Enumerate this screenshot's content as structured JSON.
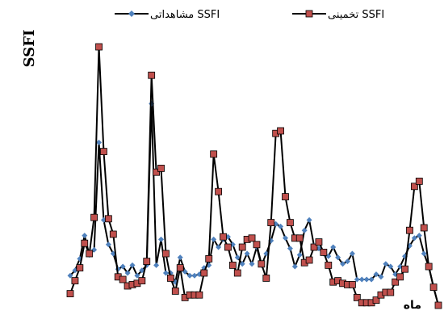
{
  "chart_data": {
    "type": "line",
    "title": "",
    "xlabel": "ماه",
    "ylabel": "SSFI",
    "ylim": [
      0,
      1
    ],
    "grid": false,
    "legend_position": "top",
    "x": [
      1,
      2,
      3,
      4,
      5,
      6,
      7,
      8,
      9,
      10,
      11,
      12,
      13,
      14,
      15,
      16,
      17,
      18,
      19,
      20,
      21,
      22,
      23,
      24,
      25,
      26,
      27,
      28,
      29,
      30,
      31,
      32,
      33,
      34,
      35,
      36,
      37,
      38,
      39,
      40,
      41,
      42,
      43,
      44,
      45,
      46,
      47,
      48,
      49,
      50,
      51,
      52,
      53,
      54,
      55,
      56,
      57,
      58,
      59,
      60,
      61,
      62,
      63,
      64,
      65,
      66,
      67,
      68,
      69,
      70,
      71,
      72,
      73,
      74,
      75,
      76,
      77,
      78
    ],
    "series": [
      {
        "name": "تخمینی SSFI",
        "color": "#c0504d",
        "marker": "square",
        "values": [
          0.045,
          0.095,
          0.145,
          0.24,
          0.2,
          0.34,
          1.0,
          0.595,
          0.335,
          0.275,
          0.11,
          0.1,
          0.075,
          0.08,
          0.085,
          0.095,
          0.17,
          0.89,
          0.515,
          0.53,
          0.2,
          0.105,
          0.055,
          0.145,
          0.03,
          0.04,
          0.04,
          0.04,
          0.125,
          0.18,
          0.585,
          0.44,
          0.265,
          0.225,
          0.155,
          0.125,
          0.225,
          0.255,
          0.26,
          0.235,
          0.16,
          0.105,
          0.32,
          0.665,
          0.675,
          0.42,
          0.32,
          0.26,
          0.26,
          0.165,
          0.175,
          0.225,
          0.245,
          0.205,
          0.155,
          0.09,
          0.095,
          0.085,
          0.08,
          0.08,
          0.03,
          0.01,
          0.01,
          0.01,
          0.02,
          0.04,
          0.05,
          0.05,
          0.09,
          0.11,
          0.14,
          0.29,
          0.46,
          0.48,
          0.3,
          0.15,
          0.07,
          0.0
        ]
      },
      {
        "name": "مشاهداتی SSFI",
        "color": "#4f81bd",
        "marker": "diamond",
        "values": [
          0.115,
          0.135,
          0.18,
          0.27,
          0.195,
          0.215,
          0.63,
          0.33,
          0.235,
          0.2,
          0.14,
          0.15,
          0.125,
          0.155,
          0.115,
          0.135,
          0.155,
          0.78,
          0.155,
          0.255,
          0.125,
          0.125,
          0.09,
          0.185,
          0.13,
          0.115,
          0.115,
          0.12,
          0.145,
          0.155,
          0.255,
          0.225,
          0.255,
          0.265,
          0.235,
          0.185,
          0.16,
          0.2,
          0.16,
          0.225,
          0.155,
          0.2,
          0.25,
          0.315,
          0.305,
          0.26,
          0.22,
          0.15,
          0.195,
          0.29,
          0.33,
          0.23,
          0.22,
          0.2,
          0.19,
          0.225,
          0.185,
          0.16,
          0.17,
          0.2,
          0.1,
          0.1,
          0.1,
          0.1,
          0.12,
          0.11,
          0.16,
          0.15,
          0.12,
          0.15,
          0.19,
          0.23,
          0.26,
          0.27,
          0.2,
          0.15,
          0.07,
          0.0
        ]
      }
    ]
  }
}
